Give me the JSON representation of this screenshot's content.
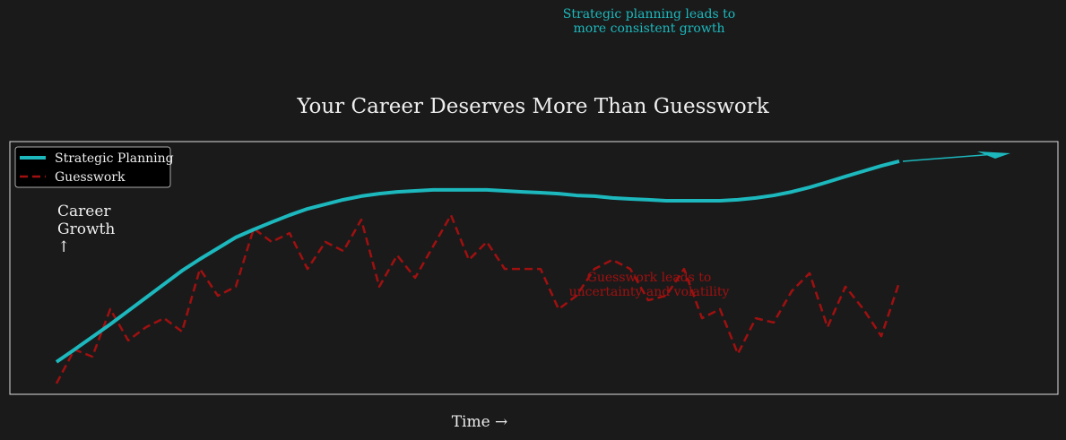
{
  "chart_data": {
    "type": "line",
    "title": "Your Career Deserves More Than Guesswork",
    "xlabel": "Time →",
    "ylabel": "Career\nGrowth\n↑",
    "annotations": [
      "Strategic planning leads to\nmore consistent growth",
      "Guesswork leads to\nuncertainty and volatility"
    ],
    "x": [
      0,
      1,
      2,
      3,
      4,
      5,
      6,
      7,
      8,
      9,
      10,
      11,
      12,
      13,
      14,
      15,
      16,
      17,
      18,
      19,
      20,
      21,
      22,
      23,
      24,
      25,
      26,
      27,
      28,
      29,
      30,
      31,
      32,
      33,
      34,
      35,
      36,
      37,
      38,
      39,
      40,
      41,
      42,
      43,
      44,
      45,
      46,
      47
    ],
    "xlim": [
      -2.6,
      55.85
    ],
    "ylim": [
      0,
      100
    ],
    "legend": "upper left",
    "series": [
      {
        "name": "Strategic Planning",
        "color": "#1cb8bd",
        "style": "solid",
        "values": [
          12.8,
          17.7,
          22.7,
          27.7,
          33,
          38.3,
          43.6,
          48.9,
          53.5,
          57.8,
          62.1,
          65.2,
          68.1,
          70.9,
          73.4,
          75.2,
          77,
          78.4,
          79.4,
          80.1,
          80.5,
          80.9,
          80.9,
          80.9,
          80.9,
          80.5,
          80.1,
          79.8,
          79.4,
          78.7,
          78.4,
          77.7,
          77.3,
          77,
          76.6,
          76.6,
          76.6,
          76.6,
          77,
          77.7,
          78.7,
          80.1,
          81.9,
          84,
          86.2,
          88.3,
          90.4,
          92.2
        ]
      },
      {
        "name": "Guesswork",
        "color": "#a01010",
        "style": "dashed",
        "values": [
          4.3,
          17.7,
          14.9,
          33.7,
          21.3,
          26.6,
          30.1,
          24.8,
          49.6,
          39,
          42.6,
          65.6,
          60.3,
          63.8,
          49.6,
          60.3,
          56.7,
          69.1,
          42.6,
          55,
          46.1,
          58.5,
          70.9,
          53.2,
          60.3,
          49.6,
          49.6,
          49.6,
          33.7,
          39,
          49.6,
          53.2,
          49.6,
          37.2,
          39,
          49.6,
          30.1,
          33.7,
          16,
          30.1,
          28.4,
          40.8,
          47.9,
          26.6,
          42.6,
          33.7,
          23,
          44.3
        ]
      }
    ]
  }
}
